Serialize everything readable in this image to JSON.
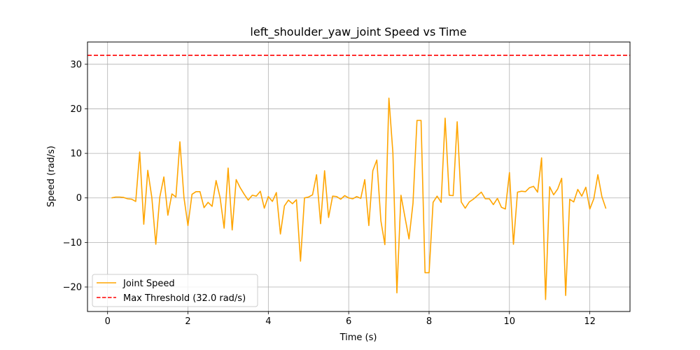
{
  "chart_data": {
    "type": "line",
    "title": "left_shoulder_yaw_joint Speed vs Time",
    "xlabel": "Time (s)",
    "ylabel": "Speed (rad/s)",
    "xlim": [
      -0.5,
      13.0
    ],
    "ylim": [
      -25.5,
      35.0
    ],
    "xticks": [
      0,
      2,
      4,
      6,
      8,
      10,
      12
    ],
    "yticks": [
      -20,
      -10,
      0,
      10,
      20,
      30
    ],
    "grid": true,
    "legend_position": "lower-left",
    "colors": {
      "series": "#ffa500",
      "threshold": "#ff0000",
      "grid": "#b0b0b0"
    },
    "series": [
      {
        "name": "Joint Speed",
        "style": "solid",
        "x": [
          0.1,
          0.2,
          0.3,
          0.4,
          0.5,
          0.6,
          0.7,
          0.8,
          0.9,
          1.0,
          1.1,
          1.2,
          1.3,
          1.4,
          1.5,
          1.6,
          1.7,
          1.8,
          1.9,
          2.0,
          2.1,
          2.2,
          2.3,
          2.4,
          2.5,
          2.6,
          2.7,
          2.8,
          2.9,
          3.0,
          3.1,
          3.2,
          3.3,
          3.4,
          3.5,
          3.6,
          3.7,
          3.8,
          3.9,
          4.0,
          4.1,
          4.2,
          4.3,
          4.4,
          4.5,
          4.6,
          4.7,
          4.8,
          4.9,
          5.0,
          5.1,
          5.2,
          5.3,
          5.4,
          5.5,
          5.6,
          5.7,
          5.8,
          5.9,
          6.0,
          6.1,
          6.2,
          6.3,
          6.4,
          6.5,
          6.6,
          6.7,
          6.8,
          6.9,
          7.0,
          7.1,
          7.2,
          7.3,
          7.4,
          7.5,
          7.6,
          7.7,
          7.8,
          7.9,
          8.0,
          8.1,
          8.2,
          8.3,
          8.4,
          8.5,
          8.6,
          8.7,
          8.8,
          8.9,
          9.0,
          9.1,
          9.2,
          9.3,
          9.4,
          9.5,
          9.6,
          9.7,
          9.8,
          9.9,
          10.0,
          10.1,
          10.2,
          10.3,
          10.4,
          10.5,
          10.6,
          10.7,
          10.8,
          10.9,
          11.0,
          11.1,
          11.2,
          11.3,
          11.4,
          11.5,
          11.6,
          11.7,
          11.8,
          11.9,
          12.0,
          12.1,
          12.2,
          12.3,
          12.4
        ],
        "y": [
          0.0,
          0.2,
          0.2,
          0.1,
          -0.2,
          -0.3,
          -0.8,
          10.3,
          -5.9,
          6.2,
          0.1,
          -10.4,
          0.2,
          4.7,
          -3.9,
          0.9,
          0.2,
          12.6,
          0.1,
          -6.2,
          0.8,
          1.4,
          1.4,
          -2.2,
          -1.0,
          -1.9,
          3.9,
          0.1,
          -6.8,
          6.7,
          -7.2,
          4.1,
          2.3,
          0.8,
          -0.5,
          0.6,
          0.4,
          1.5,
          -2.3,
          0.3,
          -0.8,
          1.2,
          -8.1,
          -1.8,
          -0.5,
          -1.3,
          -0.4,
          -14.2,
          0.0,
          0.2,
          0.7,
          5.2,
          -5.8,
          6.1,
          -4.4,
          0.4,
          0.3,
          -0.3,
          0.5,
          0.0,
          -0.2,
          0.3,
          -0.1,
          4.1,
          -6.2,
          6.1,
          8.5,
          -5.1,
          -10.5,
          22.4,
          10.1,
          -21.3,
          0.6,
          -4.3,
          -9.2,
          -1.2,
          17.4,
          17.4,
          -16.8,
          -16.8,
          -1.0,
          0.4,
          -1.0,
          17.9,
          0.6,
          0.5,
          17.1,
          -0.9,
          -2.3,
          -0.9,
          -0.3,
          0.5,
          1.3,
          -0.2,
          -0.2,
          -1.5,
          -0.1,
          -2.1,
          -2.5,
          5.7,
          -10.4,
          1.3,
          1.5,
          1.4,
          2.3,
          2.6,
          1.3,
          9.0,
          -22.8,
          2.5,
          0.7,
          2.0,
          4.4,
          -21.9,
          -0.3,
          -0.9,
          1.9,
          0.4,
          2.4,
          -2.5,
          -0.2,
          5.2,
          0.3,
          -2.4
        ]
      },
      {
        "name": "Max Threshold (32.0 rad/s)",
        "style": "dashed",
        "y_constant": 32.0
      }
    ]
  }
}
